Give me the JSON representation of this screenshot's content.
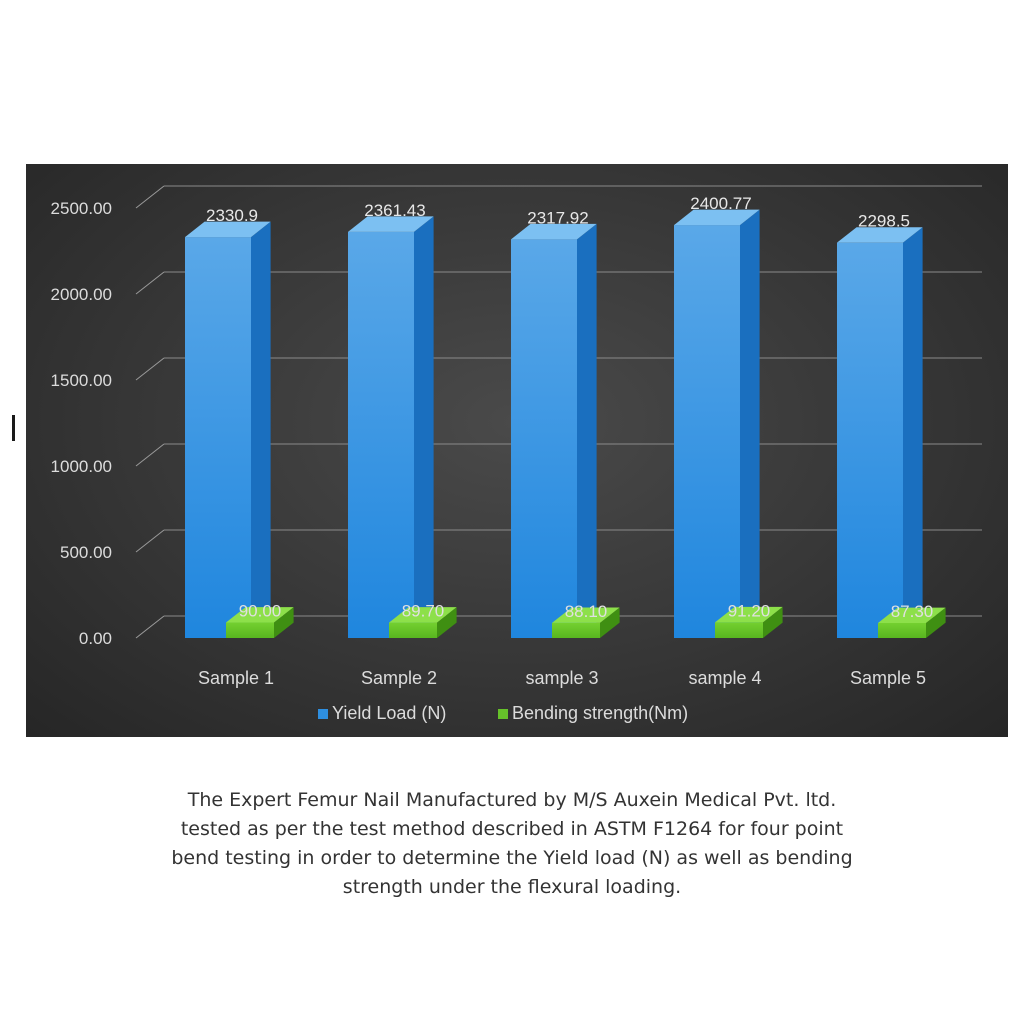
{
  "chart_data": {
    "type": "bar",
    "style": "3d-clustered-column",
    "categories": [
      "Sample 1",
      "Sample 2",
      "sample 3",
      "sample 4",
      "Sample 5"
    ],
    "series": [
      {
        "name": "Yield Load (N)",
        "values": [
          2330.9,
          2361.43,
          2317.92,
          2400.77,
          2298.5
        ],
        "labels": [
          "2330.9",
          "2361.43",
          "2317.92",
          "2400.77",
          "2298.5"
        ],
        "color": "#2e8fe0"
      },
      {
        "name": "Bending strength(Nm)",
        "values": [
          90.0,
          89.7,
          88.1,
          91.2,
          87.3
        ],
        "labels": [
          "90.00",
          "89.70",
          "88.10",
          "91.20",
          "87.30"
        ],
        "color": "#66c22a"
      }
    ],
    "y_ticks": [
      "0.00",
      "500.00",
      "1000.00",
      "1500.00",
      "2000.00",
      "2500.00"
    ],
    "ylim": [
      0,
      2500
    ],
    "grid": true,
    "legend_position": "bottom",
    "background": "#3a3a3a"
  },
  "caption": {
    "lines": [
      "The Expert Femur Nail Manufactured by M/S Auxein Medical Pvt. ltd.",
      "tested as per the test method described in ASTM F1264 for four point",
      "bend testing in order to determine the Yield load (N) as well as bending",
      "strength under the flexural loading."
    ]
  }
}
